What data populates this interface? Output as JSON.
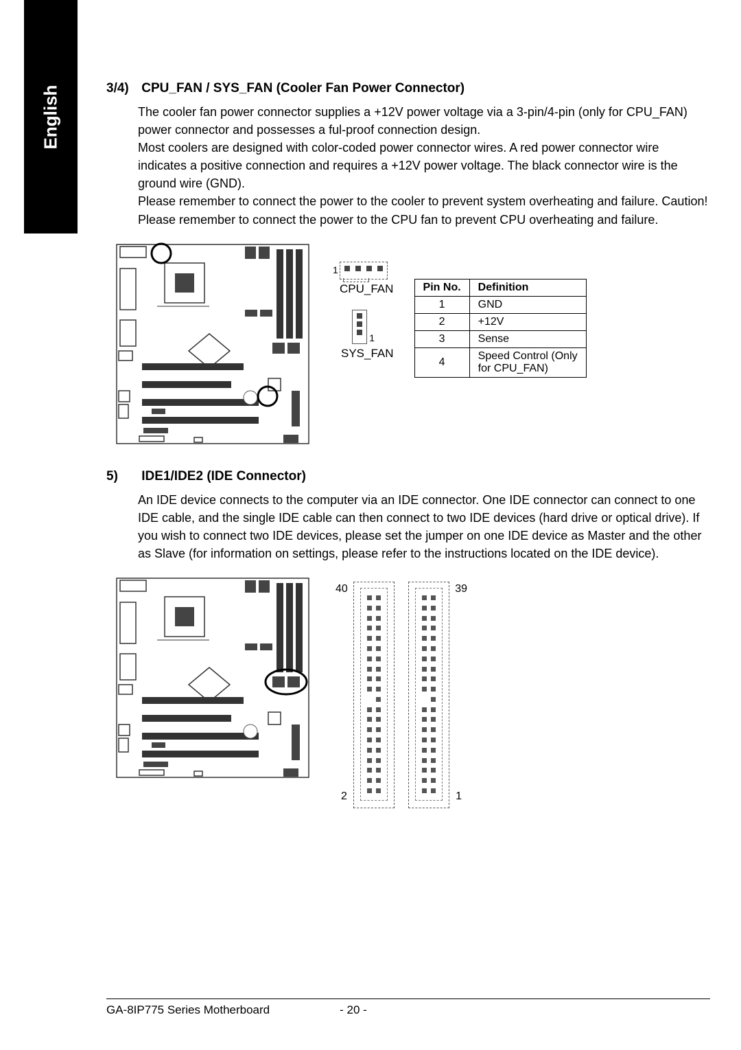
{
  "sidebar": {
    "label": "English"
  },
  "section34": {
    "num": "3/4)",
    "title": "CPU_FAN / SYS_FAN (Cooler Fan Power Connector)",
    "paragraphs": [
      "The cooler fan power connector supplies a +12V power voltage via a 3-pin/4-pin (only for CPU_FAN) power connector and possesses a ful-proof connection design.",
      "Most coolers are designed with color-coded power connector wires. A red power connector wire indicates a positive connection and requires a +12V power voltage. The black connector wire is the ground wire (GND).",
      "Please remember to connect the power to the cooler to prevent system overheating and failure. Caution!",
      "Please remember to connect the power to the CPU fan to prevent CPU overheating and failure."
    ],
    "cpu_fan_label": "CPU_FAN",
    "sys_fan_label": "SYS_FAN",
    "pin1": "1",
    "pintable": {
      "headers": [
        "Pin No.",
        "Definition"
      ],
      "rows": [
        [
          "1",
          "GND"
        ],
        [
          "2",
          "+12V"
        ],
        [
          "3",
          "Sense"
        ],
        [
          "4",
          "Speed Control (Only for CPU_FAN)"
        ]
      ]
    },
    "colors": {
      "border": "#000000"
    }
  },
  "section5": {
    "num": "5)",
    "title": "IDE1/IDE2 (IDE Connector)",
    "paragraph": "An IDE device connects to the computer via an IDE connector. One IDE connector can connect to one IDE cable, and the single IDE cable can then connect to two IDE devices (hard drive or optical drive). If you wish to connect two IDE devices, please set the jumper on one IDE device as Master and the other as Slave (for information on settings, please refer to the instructions located on the IDE device).",
    "labels": {
      "p40": "40",
      "p2": "2",
      "p39": "39",
      "p1": "1"
    },
    "ide1_rows": 20,
    "ide2_rows": 20,
    "ide1_gap_row": 10,
    "ide2_gap_row": 10
  },
  "footer": {
    "left": "GA-8IP775 Series Motherboard",
    "page": "- 20 -"
  },
  "mb_diagram_title": "Motherboard layout diagram"
}
